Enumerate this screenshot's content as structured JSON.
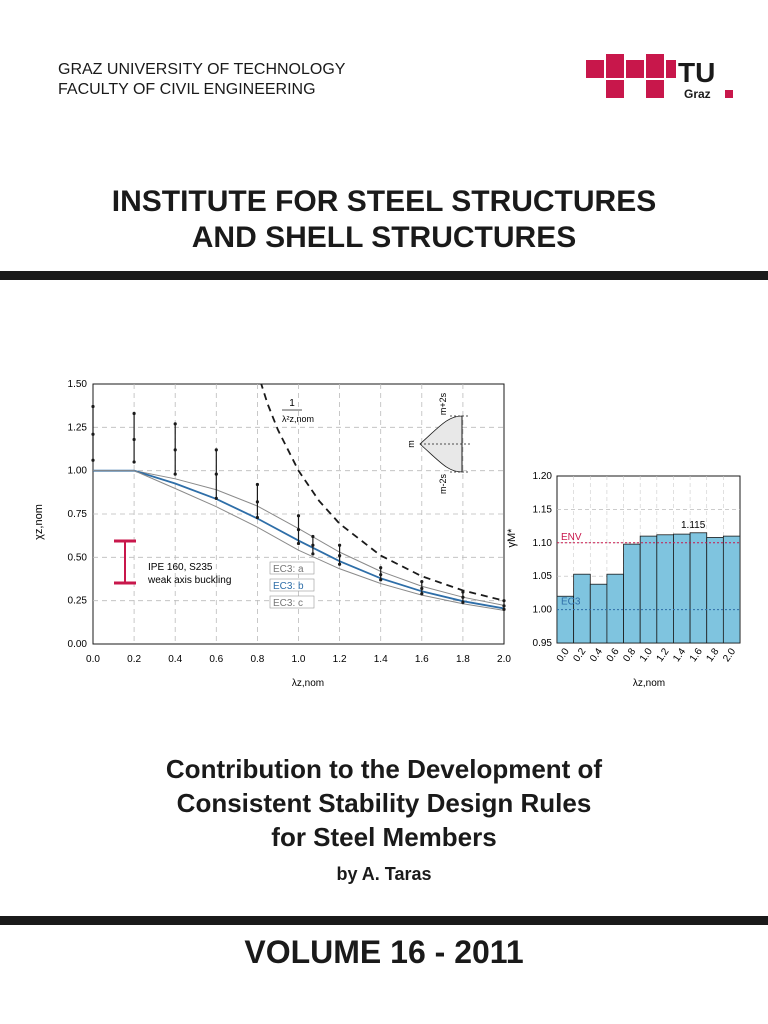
{
  "header": {
    "university": "GRAZ UNIVERSITY OF TECHNOLOGY",
    "faculty": "FACULTY OF CIVIL ENGINEERING",
    "logo_tu": "TU",
    "logo_graz": "Graz"
  },
  "institute": {
    "line1": "INSTITUTE FOR STEEL STRUCTURES",
    "line2": "AND SHELL STRUCTURES"
  },
  "colors": {
    "accent": "#c8174b",
    "bar": "#7fc4df",
    "blue": "#2e6ea8",
    "dark": "#1a1a1a"
  },
  "chart_data": [
    {
      "type": "line",
      "ylabel": "χz,nom",
      "xlabel": "λz,nom",
      "xlim": [
        0,
        2
      ],
      "ylim": [
        0,
        1.5
      ],
      "xticks": [
        "0.0",
        "0.2",
        "0.4",
        "0.6",
        "0.8",
        "1.0",
        "1.2",
        "1.4",
        "1.6",
        "1.8",
        "2.0"
      ],
      "yticks": [
        "0.00",
        "0.25",
        "0.50",
        "0.75",
        "1.00",
        "1.25",
        "1.50"
      ],
      "grid": true,
      "series": [
        {
          "name": "EC3: a",
          "x": [
            0,
            0.2,
            0.4,
            0.6,
            0.8,
            1.0,
            1.2,
            1.4,
            1.6,
            1.8,
            2.0
          ],
          "y": [
            1,
            1,
            0.953,
            0.89,
            0.796,
            0.666,
            0.53,
            0.419,
            0.333,
            0.27,
            0.223
          ]
        },
        {
          "name": "EC3: b",
          "x": [
            0,
            0.2,
            0.4,
            0.6,
            0.8,
            1.0,
            1.2,
            1.4,
            1.6,
            1.8,
            2.0
          ],
          "y": [
            1,
            1,
            0.926,
            0.837,
            0.724,
            0.597,
            0.478,
            0.379,
            0.304,
            0.247,
            0.205
          ]
        },
        {
          "name": "EC3: c",
          "x": [
            0,
            0.2,
            0.4,
            0.6,
            0.8,
            1.0,
            1.2,
            1.4,
            1.6,
            1.8,
            2.0
          ],
          "y": [
            1,
            1,
            0.897,
            0.792,
            0.674,
            0.541,
            0.434,
            0.349,
            0.282,
            0.232,
            0.194
          ]
        },
        {
          "x": [
            0.78,
            0.85,
            0.9,
            1.0,
            1.1,
            1.2,
            1.4,
            1.6,
            1.8,
            2.0
          ],
          "y": [
            1.644,
            1.384,
            1.235,
            1.0,
            0.826,
            0.694,
            0.51,
            0.391,
            0.309,
            0.25
          ]
        }
      ],
      "error_bars": [
        {
          "x": 0.0,
          "low": 1.06,
          "mid": 1.21,
          "high": 1.37
        },
        {
          "x": 0.2,
          "low": 1.05,
          "mid": 1.18,
          "high": 1.33
        },
        {
          "x": 0.4,
          "low": 0.98,
          "mid": 1.12,
          "high": 1.27
        },
        {
          "x": 0.6,
          "low": 0.84,
          "mid": 0.98,
          "high": 1.12
        },
        {
          "x": 0.8,
          "low": 0.73,
          "mid": 0.82,
          "high": 0.92
        },
        {
          "x": 1.0,
          "low": 0.58,
          "mid": 0.66,
          "high": 0.74
        },
        {
          "x": 1.07,
          "low": 0.52,
          "mid": 0.57,
          "high": 0.62
        },
        {
          "x": 1.2,
          "low": 0.46,
          "mid": 0.51,
          "high": 0.57
        },
        {
          "x": 1.4,
          "low": 0.37,
          "mid": 0.4,
          "high": 0.44
        },
        {
          "x": 1.6,
          "low": 0.29,
          "mid": 0.32,
          "high": 0.36
        },
        {
          "x": 1.8,
          "low": 0.24,
          "mid": 0.27,
          "high": 0.3
        },
        {
          "x": 2.0,
          "low": 0.2,
          "mid": 0.22,
          "high": 0.25
        }
      ],
      "annotations": {
        "curve_label_num": "1",
        "curve_label_den": "λ²z,nom",
        "section": "IPE 160, S235",
        "mode": "weak axis buckling",
        "dist_m": "m",
        "dist_plus": "m+2s",
        "dist_minus": "m-2s"
      }
    },
    {
      "type": "bar",
      "ylabel": "γM*",
      "xlabel": "λz,nom",
      "ylim": [
        0.95,
        1.2
      ],
      "yticks": [
        "0.95",
        "1.00",
        "1.05",
        "1.10",
        "1.15",
        "1.20"
      ],
      "categories": [
        "0.0",
        "0.2",
        "0.4",
        "0.6",
        "0.8",
        "1.0",
        "1.2",
        "1.4",
        "1.6",
        "1.8",
        "2.0"
      ],
      "values": [
        1.02,
        1.053,
        1.038,
        1.053,
        1.098,
        1.11,
        1.112,
        1.113,
        1.115,
        1.108,
        1.11
      ],
      "reference_lines": [
        {
          "name": "ENV",
          "value": 1.1
        },
        {
          "name": "EC3",
          "value": 1.0
        }
      ],
      "max_label": "1.115",
      "grid": true
    }
  ],
  "title": {
    "line1": "Contribution to the Development of",
    "line2": "Consistent Stability Design Rules",
    "line3": "for Steel Members"
  },
  "author": "by A. Taras",
  "volume": "VOLUME 16 - 2011"
}
